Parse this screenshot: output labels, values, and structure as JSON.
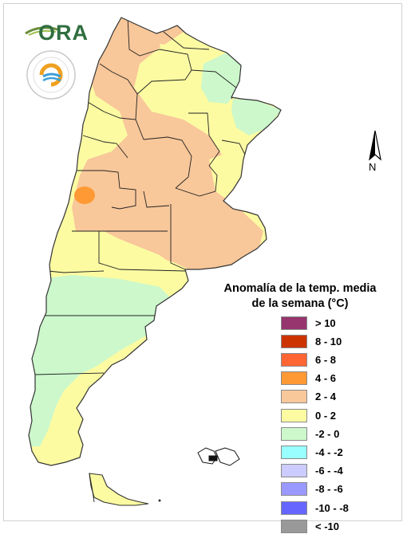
{
  "header": {
    "logo_ora_text": "ORA"
  },
  "map": {
    "north_label": "N",
    "palette": {
      "gt10": "#96356e",
      "8_10": "#cc3300",
      "6_8": "#ff6633",
      "4_6": "#ff9933",
      "2_4": "#f8c79a",
      "0_2": "#fcfba2",
      "m2_0": "#ccf8cc",
      "m4_m2": "#99ffff",
      "m6_m4": "#ccccff",
      "m8_m6": "#9999ff",
      "m10_m8": "#6666ff",
      "lt_m10": "#999999"
    }
  },
  "legend": {
    "title_line1": "Anomalía de la temp. media",
    "title_line2": "de la semana (°C)",
    "items": [
      {
        "label": "> 10",
        "color": "#96356e"
      },
      {
        "label": "8 - 10",
        "color": "#cc3300"
      },
      {
        "label": "6 - 8",
        "color": "#ff6633"
      },
      {
        "label": "4 - 6",
        "color": "#ff9933"
      },
      {
        "label": "2 - 4",
        "color": "#f8c79a"
      },
      {
        "label": "0 - 2",
        "color": "#fcfba2"
      },
      {
        "label": "-2 - 0",
        "color": "#ccf8cc"
      },
      {
        "label": "-4 - -2",
        "color": "#99ffff"
      },
      {
        "label": "-6 - -4",
        "color": "#ccccff"
      },
      {
        "label": "-8 - -6",
        "color": "#9999ff"
      },
      {
        "label": "-10 - -8",
        "color": "#6666ff"
      },
      {
        "label": "< -10",
        "color": "#999999"
      }
    ]
  }
}
